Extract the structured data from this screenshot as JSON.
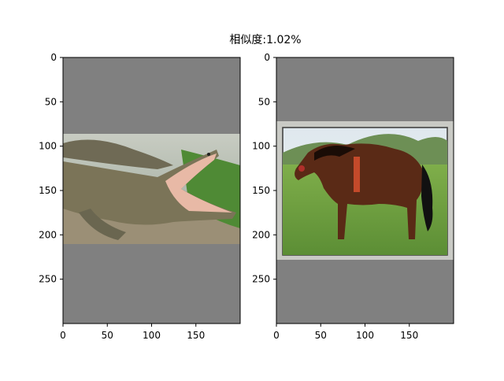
{
  "figure": {
    "suptitle": "相似度:1.02%",
    "background": "#ffffff"
  },
  "chart_data": [
    {
      "type": "image",
      "panel": "left",
      "content": "crocodile photo",
      "pad_color": "#808080",
      "xlim": [
        0,
        200
      ],
      "ylim": [
        300,
        0
      ],
      "x_ticks": [
        0,
        50,
        100,
        150
      ],
      "y_ticks": [
        0,
        50,
        100,
        150,
        200,
        250
      ],
      "image_extent": {
        "x0": 0,
        "x1": 200,
        "y0": 86,
        "y1": 210
      }
    },
    {
      "type": "image",
      "panel": "right",
      "content": "horse photo",
      "pad_color": "#808080",
      "xlim": [
        0,
        200
      ],
      "ylim": [
        300,
        0
      ],
      "x_ticks": [
        0,
        50,
        100,
        150
      ],
      "y_ticks": [
        0,
        50,
        100,
        150,
        200,
        250
      ],
      "image_extent": {
        "x0": 0,
        "x1": 200,
        "y0": 72,
        "y1": 228
      }
    }
  ]
}
